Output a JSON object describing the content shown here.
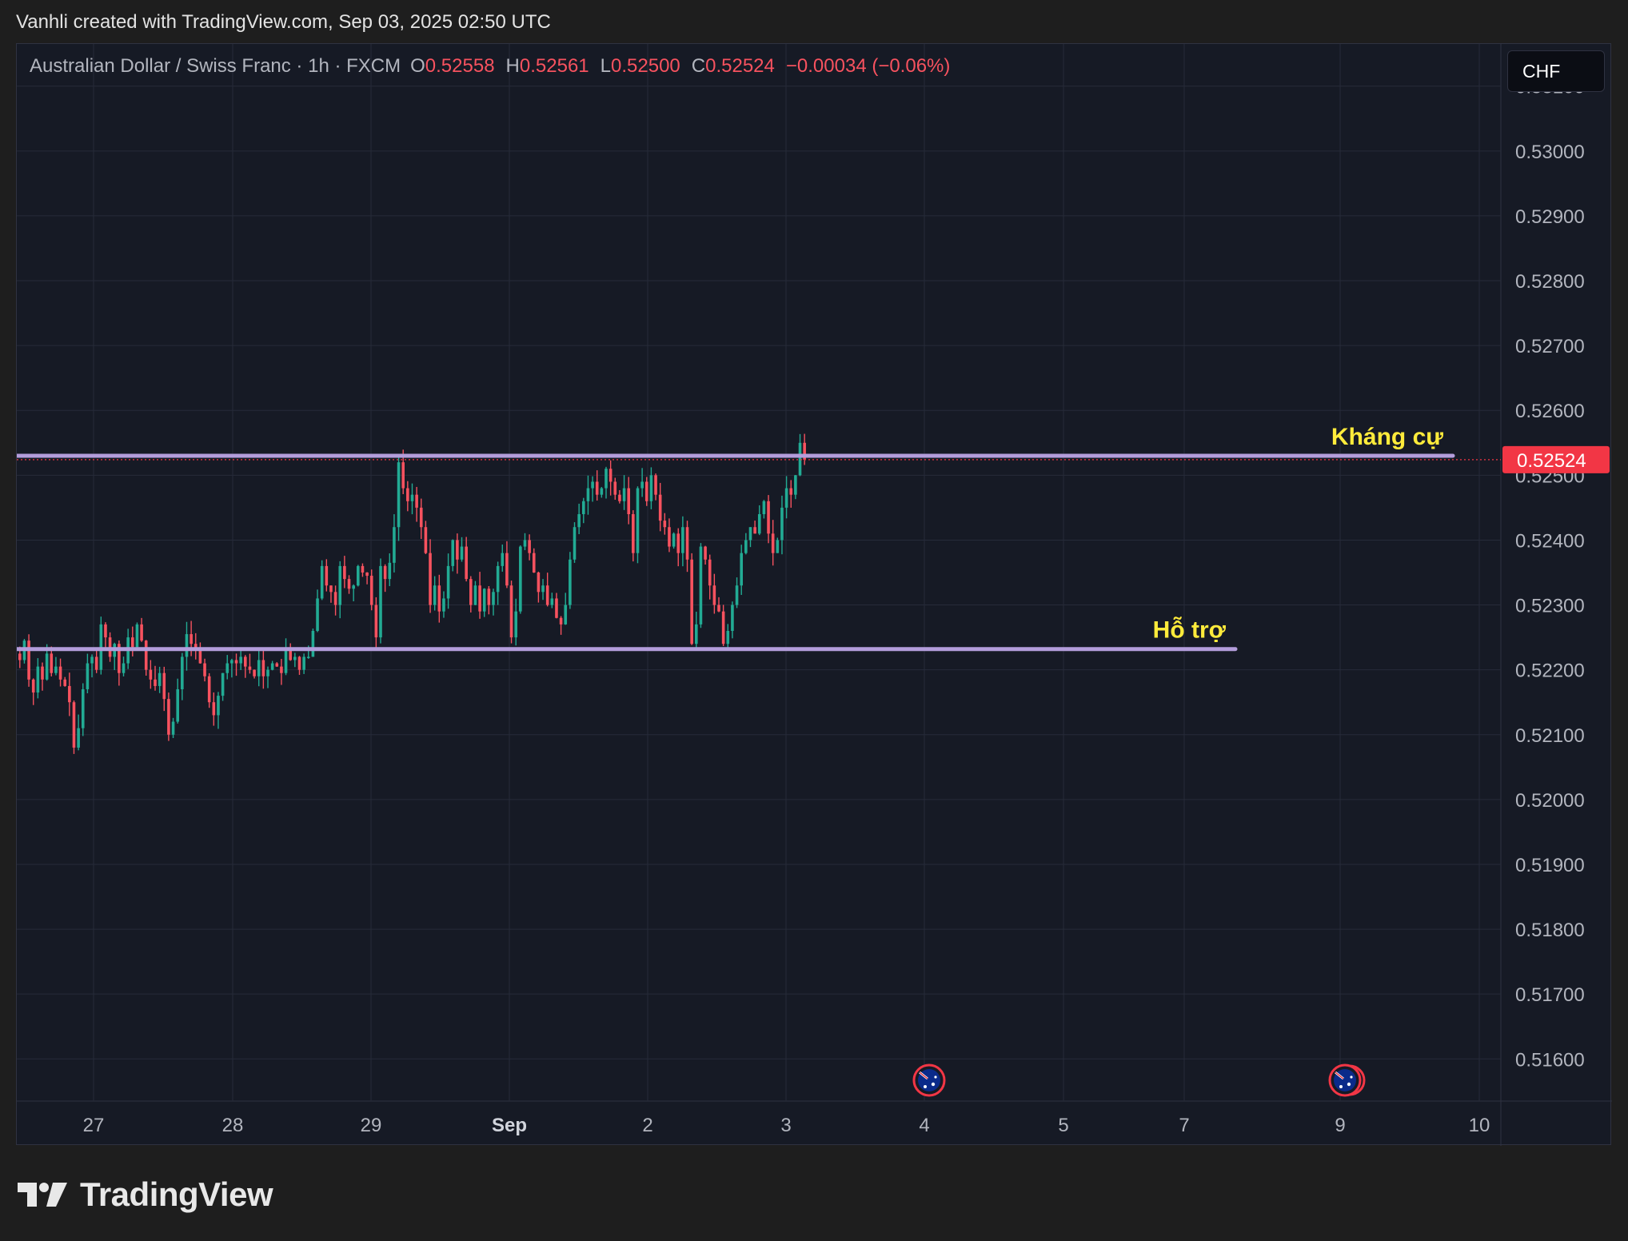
{
  "caption": "Vanhli created with TradingView.com, Sep 03, 2025 02:50 UTC",
  "legend": {
    "symbol": "Australian Dollar / Swiss Franc · 1h · FXCM",
    "o_label": "O",
    "o_value": "0.52558",
    "h_label": "H",
    "h_value": "0.52561",
    "l_label": "L",
    "l_value": "0.52500",
    "c_label": "C",
    "c_value": "0.52524",
    "change": "−0.00034 (−0.06%)"
  },
  "currency_button": "CHF",
  "brand": "TradingView",
  "colors": {
    "up": "#22ab94",
    "down": "#f7525f",
    "level_line": "#b39ddb",
    "annotation": "#ffeb3b",
    "grid": "#262b39",
    "price_tag": "#f23645"
  },
  "events": [
    {
      "icon": "australia-flag-icon",
      "x": "4"
    },
    {
      "icon": "australia-flag-icon",
      "x": "9"
    }
  ],
  "chart_data": {
    "type": "candlestick",
    "interval": "1h",
    "x_ticks": [
      "27",
      "28",
      "29",
      "Sep",
      "2",
      "3",
      "4",
      "5",
      "7",
      "9",
      "10"
    ],
    "y_ticks": [
      "0.53100",
      "0.53000",
      "0.52900",
      "0.52800",
      "0.52700",
      "0.52600",
      "0.52500",
      "0.52400",
      "0.52300",
      "0.52200",
      "0.52100",
      "0.52000",
      "0.51900",
      "0.51800",
      "0.51700",
      "0.51600"
    ],
    "ylim": [
      0.51535,
      0.53165
    ],
    "last_price": 0.52524,
    "last_price_label": "0.52524",
    "levels": [
      {
        "label": "Kháng cự",
        "price": 0.5253,
        "x_start": "27",
        "x_end": "10"
      },
      {
        "label": "Hỗ trợ",
        "price": 0.52232,
        "x_start": "27",
        "x_end": "9"
      }
    ],
    "candles_close": [
      0.52215,
      0.52245,
      0.52185,
      0.52165,
      0.52205,
      0.52185,
      0.52225,
      0.52195,
      0.52205,
      0.52185,
      0.52175,
      0.5215,
      0.5208,
      0.5211,
      0.5217,
      0.5221,
      0.5222,
      0.522,
      0.5227,
      0.5225,
      0.5222,
      0.5224,
      0.52195,
      0.5221,
      0.5225,
      0.52235,
      0.5227,
      0.52245,
      0.522,
      0.52185,
      0.52175,
      0.52195,
      0.52155,
      0.521,
      0.5212,
      0.5217,
      0.5222,
      0.52255,
      0.5224,
      0.5223,
      0.5221,
      0.5219,
      0.5215,
      0.5213,
      0.5216,
      0.52195,
      0.5221,
      0.52215,
      0.5221,
      0.5222,
      0.52205,
      0.522,
      0.5219,
      0.52215,
      0.5219,
      0.522,
      0.5221,
      0.52205,
      0.52195,
      0.5223,
      0.52215,
      0.5222,
      0.522,
      0.5222,
      0.5222,
      0.5226,
      0.5231,
      0.5236,
      0.5233,
      0.5232,
      0.523,
      0.5236,
      0.5234,
      0.52325,
      0.5233,
      0.5236,
      0.5235,
      0.52345,
      0.523,
      0.5225,
      0.5236,
      0.5234,
      0.52365,
      0.5242,
      0.5252,
      0.5248,
      0.5246,
      0.5247,
      0.5245,
      0.5242,
      0.5238,
      0.523,
      0.5233,
      0.5229,
      0.5231,
      0.5236,
      0.524,
      0.5237,
      0.5239,
      0.5234,
      0.523,
      0.5233,
      0.5229,
      0.52325,
      0.523,
      0.5232,
      0.5236,
      0.5238,
      0.5233,
      0.5225,
      0.5229,
      0.5239,
      0.524,
      0.5238,
      0.5235,
      0.5232,
      0.5233,
      0.523,
      0.5231,
      0.5228,
      0.5227,
      0.523,
      0.5237,
      0.5242,
      0.5244,
      0.5246,
      0.5248,
      0.5249,
      0.5247,
      0.5248,
      0.5251,
      0.5249,
      0.5247,
      0.5246,
      0.5248,
      0.5244,
      0.5238,
      0.5248,
      0.5249,
      0.5246,
      0.525,
      0.5247,
      0.5243,
      0.5242,
      0.5239,
      0.5241,
      0.5238,
      0.5242,
      0.5237,
      0.5224,
      0.5227,
      0.5239,
      0.5237,
      0.5233,
      0.523,
      0.5229,
      0.5224,
      0.5226,
      0.523,
      0.5233,
      0.5238,
      0.524,
      0.5242,
      0.5241,
      0.5244,
      0.5246,
      0.5241,
      0.5238,
      0.524,
      0.5245,
      0.5248,
      0.5247,
      0.525,
      0.5255,
      0.52524
    ]
  }
}
